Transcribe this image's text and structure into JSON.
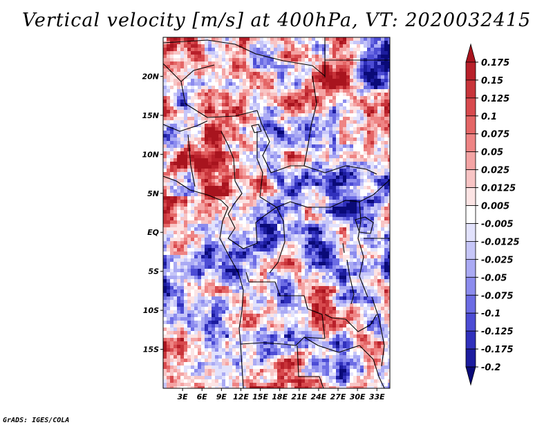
{
  "title": "Vertical velocity [m/s] at 400hPa, VT: 2020032415",
  "credit": "GrADS: IGES/COLA",
  "map": {
    "lat_labels": [
      "20N",
      "15N",
      "10N",
      "5N",
      "EQ",
      "5S",
      "10S",
      "15S"
    ],
    "lat_values": [
      20,
      15,
      10,
      5,
      0,
      -5,
      -10,
      -15
    ],
    "lon_labels": [
      "3E",
      "6E",
      "9E",
      "12E",
      "15E",
      "18E",
      "21E",
      "24E",
      "27E",
      "30E",
      "33E"
    ],
    "lon_values": [
      3,
      6,
      9,
      12,
      15,
      18,
      21,
      24,
      27,
      30,
      33
    ],
    "lon_range": [
      0,
      35
    ],
    "lat_range": [
      -20,
      25
    ]
  },
  "colorbar": {
    "labels": [
      "0.175",
      "0.15",
      "0.125",
      "0.1",
      "0.075",
      "0.05",
      "0.025",
      "0.0125",
      "0.005",
      "-0.005",
      "-0.0125",
      "-0.025",
      "-0.05",
      "-0.075",
      "-0.1",
      "-0.125",
      "-0.175",
      "-0.2"
    ],
    "colors": [
      "#a8141e",
      "#b8202a",
      "#c8343a",
      "#d84a4e",
      "#e46666",
      "#ee8484",
      "#f4a4a4",
      "#f8c4c4",
      "#fce4e4",
      "#ffffff",
      "#e2e2fc",
      "#c6c6f8",
      "#aaaaf4",
      "#8c8cee",
      "#6c6ce4",
      "#4c4cd4",
      "#3030bc",
      "#1c1c9e",
      "#0a0a78"
    ]
  }
}
